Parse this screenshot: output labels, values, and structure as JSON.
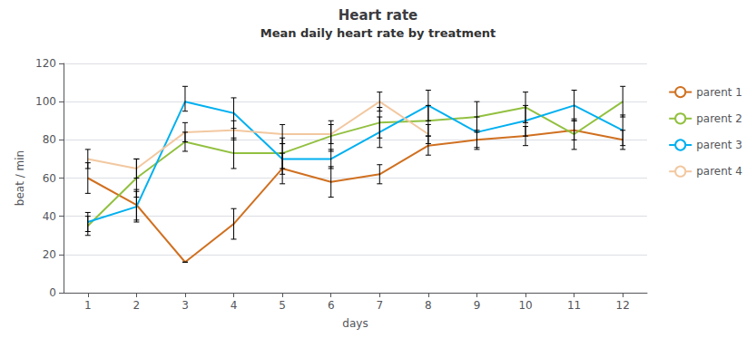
{
  "chart_data": {
    "type": "line",
    "title": "Heart rate",
    "subtitle": "Mean daily heart rate by treatment",
    "x_label": "days",
    "y_label": "beat / min",
    "x": [
      1,
      2,
      3,
      4,
      5,
      6,
      7,
      8,
      9,
      10,
      11,
      12
    ],
    "series": [
      {
        "name": "parent 1",
        "color": "#d07020",
        "values": [
          60,
          46,
          16,
          36,
          65,
          58,
          62,
          77,
          80,
          82,
          85,
          80
        ],
        "error_lower": [
          8,
          8,
          0,
          8,
          8,
          8,
          5,
          5,
          5,
          5,
          5,
          5
        ],
        "error_upper": [
          8,
          8,
          0,
          8,
          8,
          8,
          5,
          5,
          5,
          5,
          5,
          5
        ]
      },
      {
        "name": "parent 2",
        "color": "#92c040",
        "values": [
          35,
          60,
          79,
          73,
          73,
          82,
          89,
          90,
          92,
          97,
          83,
          100
        ],
        "error_lower": [
          5,
          10,
          5,
          8,
          8,
          8,
          8,
          8,
          8,
          8,
          8,
          8
        ],
        "error_upper": [
          5,
          10,
          5,
          8,
          8,
          8,
          8,
          8,
          8,
          8,
          8,
          8
        ]
      },
      {
        "name": "parent 3",
        "color": "#00b0f0",
        "values": [
          37,
          45,
          100,
          94,
          70,
          70,
          84,
          98,
          84,
          90,
          98,
          85
        ],
        "error_lower": [
          5,
          8,
          5,
          8,
          8,
          5,
          8,
          8,
          8,
          8,
          8,
          8
        ],
        "error_upper": [
          5,
          8,
          8,
          8,
          8,
          5,
          8,
          8,
          8,
          8,
          8,
          8
        ]
      },
      {
        "name": "parent 4",
        "color": "#f2c8a0",
        "values": [
          70,
          65,
          84,
          85,
          83,
          83,
          100,
          83,
          null,
          null,
          null,
          null
        ],
        "error_lower": [
          5,
          5,
          5,
          5,
          5,
          5,
          5,
          5,
          null,
          null,
          null,
          null
        ],
        "error_upper": [
          5,
          5,
          5,
          5,
          5,
          5,
          5,
          5,
          null,
          null,
          null,
          null
        ]
      }
    ],
    "xlim": [
      0.5,
      12.5
    ],
    "xticks": [
      1,
      2,
      3,
      4,
      5,
      6,
      7,
      8,
      9,
      10,
      11,
      12
    ],
    "ylim": [
      0,
      120
    ],
    "yticks": [
      0,
      20,
      40,
      60,
      80,
      100,
      120
    ],
    "grid": true,
    "legend": "right"
  }
}
